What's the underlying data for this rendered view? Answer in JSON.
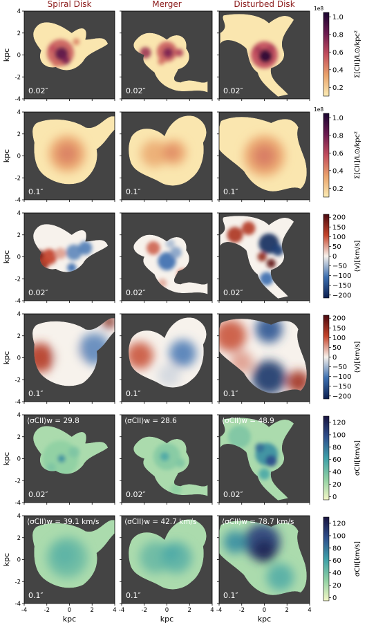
{
  "column_titles": [
    "Spiral Disk",
    "Merger",
    "Disturbed Disk"
  ],
  "title_color": "#8b1a1a",
  "panel_bg": "#444444",
  "axis_label": "kpc",
  "ticks": [
    "-4",
    "-2",
    "0",
    "2",
    "4"
  ],
  "resolutions": [
    "0.02″",
    "0.1″"
  ],
  "chart_data": {
    "type": "heatmap",
    "axes": {
      "xlabel": "kpc",
      "ylabel": "kpc",
      "xlim": [
        -4,
        4
      ],
      "ylim": [
        -4,
        4
      ],
      "ticks": [
        -4,
        -2,
        0,
        2,
        4
      ]
    },
    "rows": [
      {
        "quantity": "surface_brightness",
        "resolution": "0.02″",
        "colorbar": {
          "label": "Σ[CII]/L⊙/kpc²",
          "exponent": "1e8",
          "ticks": [
            "0.2",
            "0.4",
            "0.6",
            "0.8",
            "1.0"
          ],
          "range": [
            0.1,
            1.05
          ],
          "colormap": [
            "#fbecb5",
            "#eaa36b",
            "#c24d5d",
            "#6b1a4f",
            "#1a0530"
          ]
        }
      },
      {
        "quantity": "surface_brightness",
        "resolution": "0.1″",
        "colorbar": {
          "label": "Σ[CII]/L⊙/kpc²",
          "exponent": "1e8",
          "ticks": [
            "0.2",
            "0.4",
            "0.6",
            "0.8",
            "1.0"
          ],
          "range": [
            0.1,
            1.05
          ],
          "colormap": [
            "#fbecb5",
            "#eaa36b",
            "#c24d5d",
            "#6b1a4f",
            "#1a0530"
          ]
        }
      },
      {
        "quantity": "velocity",
        "resolution": "0.02″",
        "colorbar": {
          "label": "⟨v⟩[km/s]",
          "exponent": "",
          "ticks": [
            "200",
            "150",
            "100",
            "50",
            "0",
            "−50",
            "−100",
            "−150",
            "−200"
          ],
          "range": [
            -215,
            215
          ],
          "colormap": [
            "#0d1f4f",
            "#3c6fb0",
            "#f7f2ec",
            "#c4432a",
            "#4b0a10"
          ]
        }
      },
      {
        "quantity": "velocity",
        "resolution": "0.1″",
        "colorbar": {
          "label": "⟨v⟩[km/s]",
          "exponent": "",
          "ticks": [
            "200",
            "150",
            "100",
            "50",
            "0",
            "−50",
            "−100",
            "−150",
            "−200"
          ],
          "range": [
            -215,
            215
          ],
          "colormap": [
            "#0d1f4f",
            "#3c6fb0",
            "#f7f2ec",
            "#c4432a",
            "#4b0a10"
          ]
        }
      },
      {
        "quantity": "dispersion",
        "resolution": "0.02″",
        "colorbar": {
          "label": "σCII[km/s]",
          "exponent": "",
          "ticks": [
            "120",
            "100",
            "80",
            "60",
            "40",
            "20",
            "0"
          ],
          "range": [
            -5,
            130
          ],
          "colormap": [
            "#f4f7c6",
            "#8fd0a3",
            "#3d9fa8",
            "#2e4f8c",
            "#1a1540"
          ]
        }
      },
      {
        "quantity": "dispersion",
        "resolution": "0.1″",
        "colorbar": {
          "label": "σCII[km/s]",
          "exponent": "",
          "ticks": [
            "120",
            "100",
            "80",
            "60",
            "40",
            "20",
            "0"
          ],
          "range": [
            -5,
            130
          ],
          "colormap": [
            "#f4f7c6",
            "#8fd0a3",
            "#3d9fa8",
            "#2e4f8c",
            "#1a1540"
          ]
        }
      }
    ],
    "dispersion_weighted_means": {
      "0.02″": [
        "29.8",
        "28.6",
        "48.9"
      ],
      "0.1″": [
        "39.1 km/s",
        "42.7 km/s",
        "78.7 km/s"
      ]
    },
    "sigma_label_prefix": "⟨σCII⟩w = "
  }
}
